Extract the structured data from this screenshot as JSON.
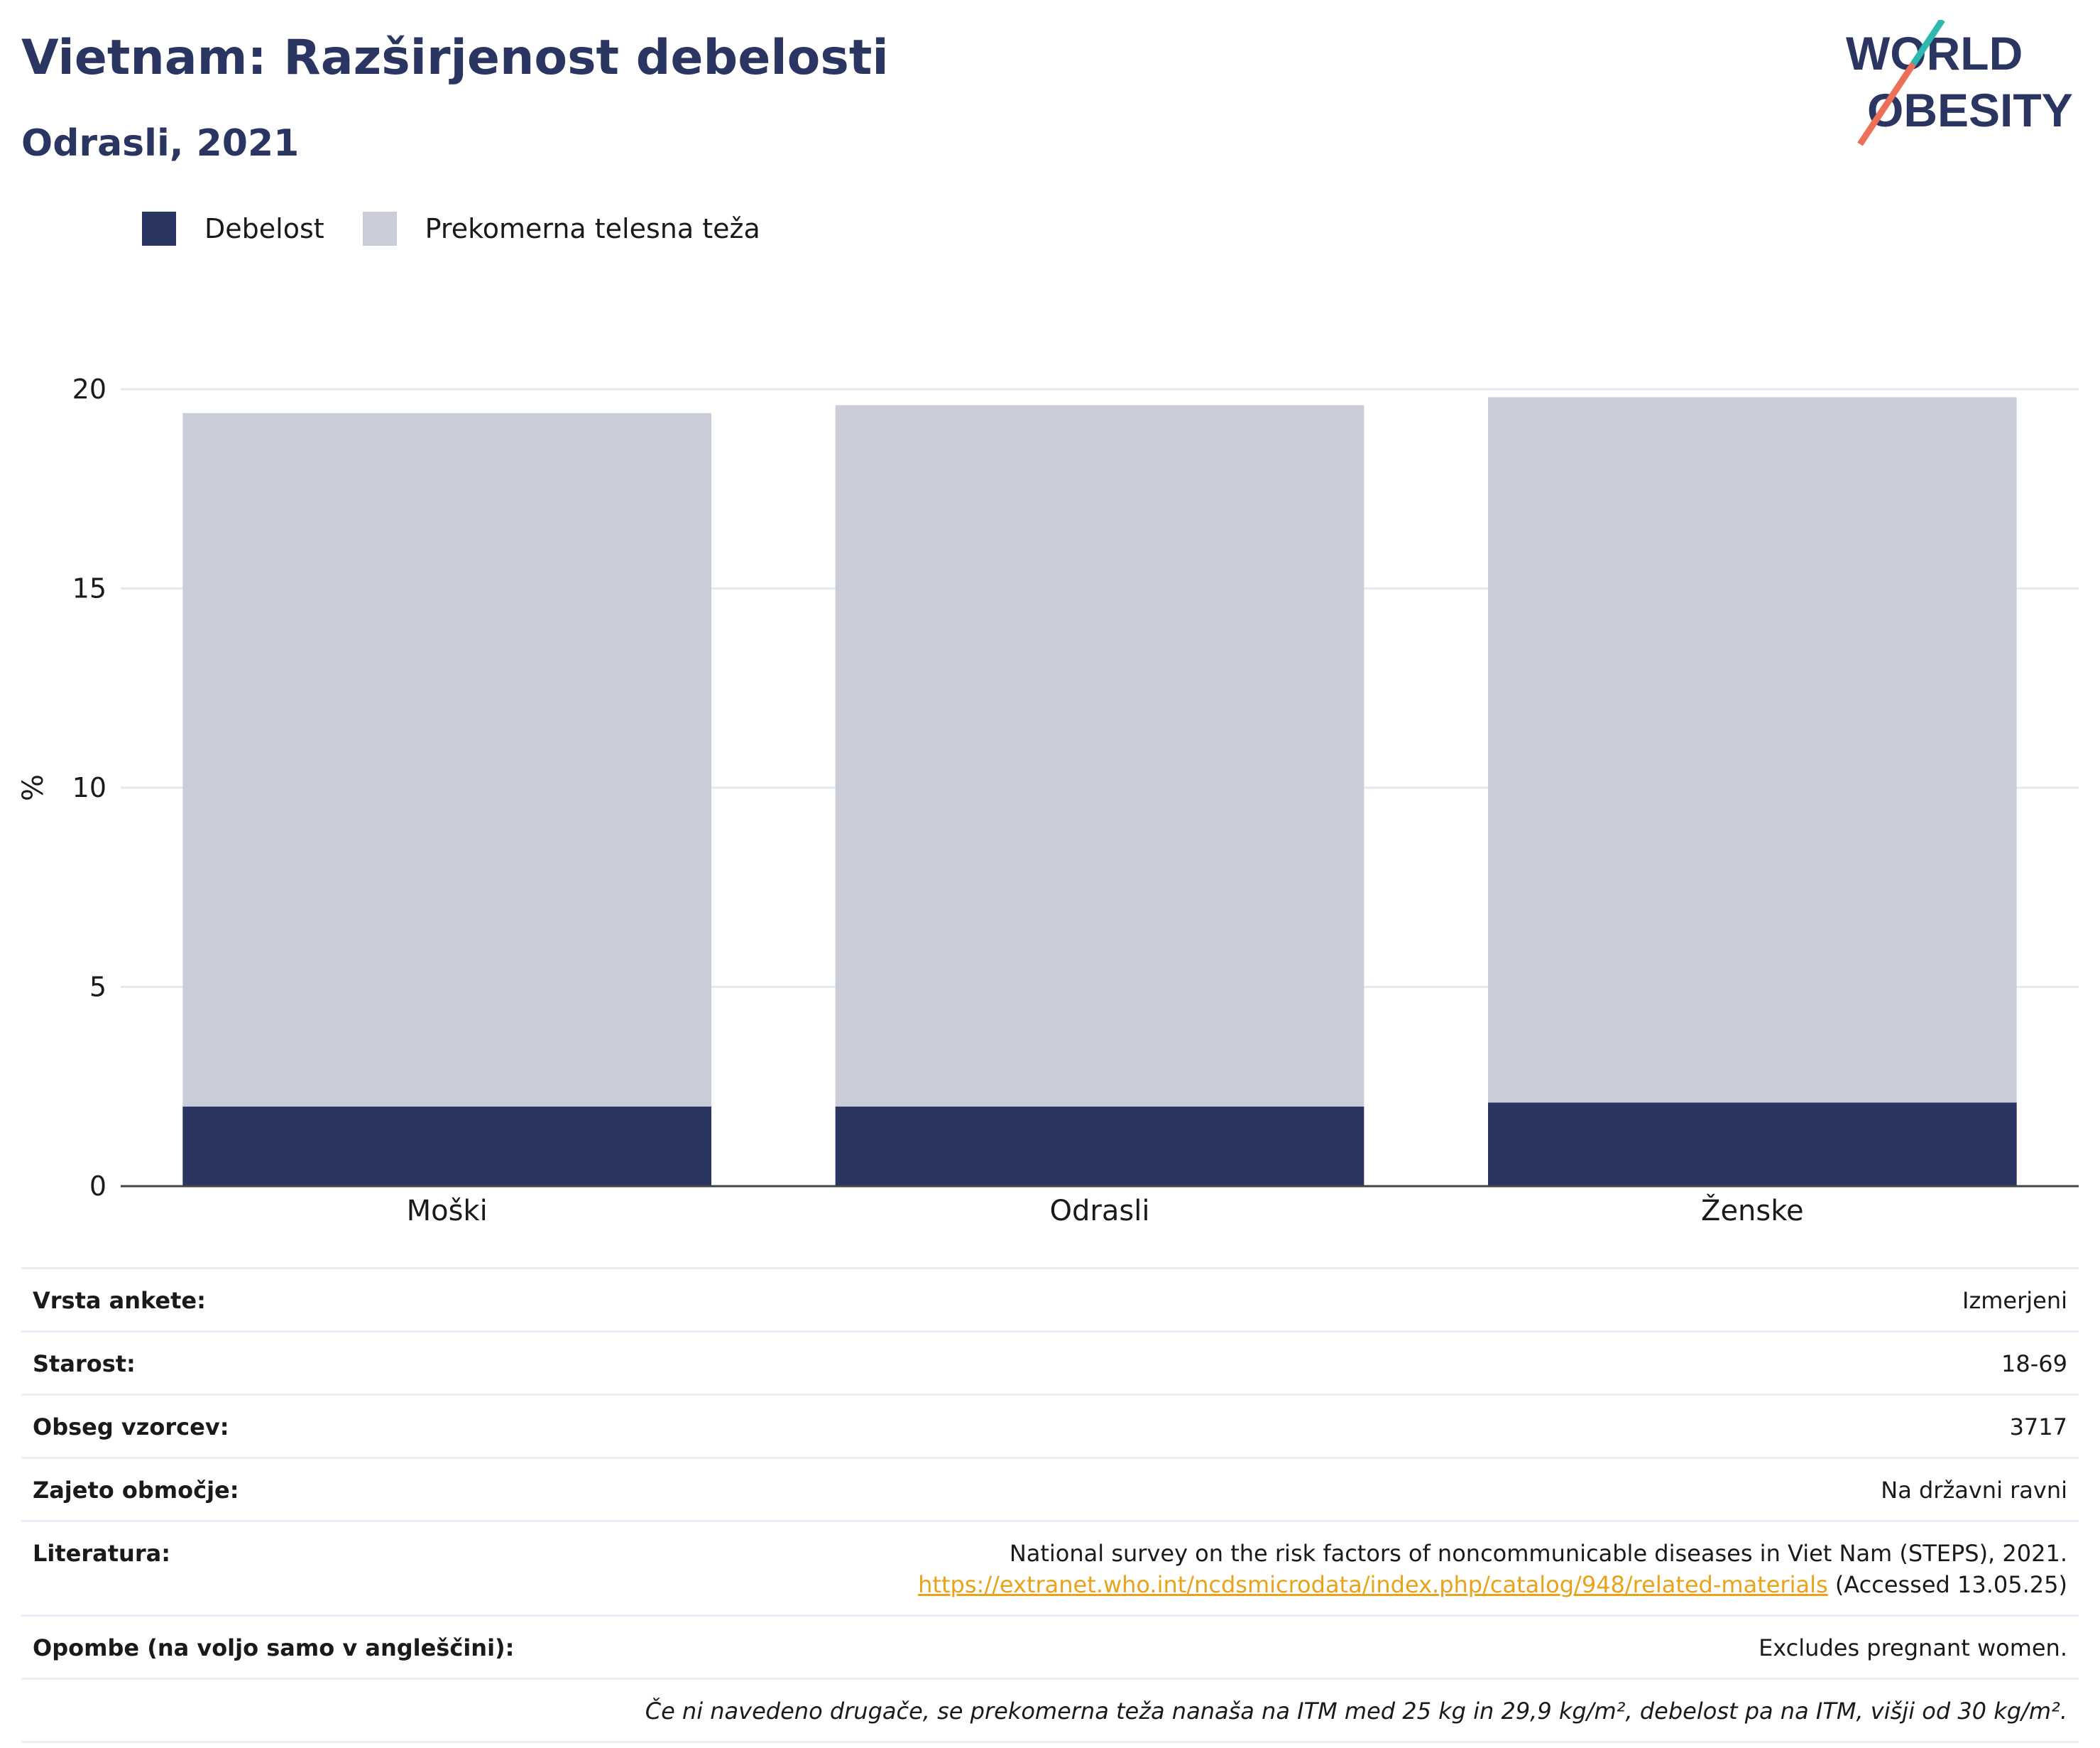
{
  "header": {
    "title": "Vietnam: Razširjenost debelosti",
    "subtitle": "Odrasli, 2021",
    "logo_text": [
      "WORLD",
      "OBESITY"
    ]
  },
  "legend": {
    "items": [
      {
        "label": "Debelost",
        "color": "#2b3561"
      },
      {
        "label": "Prekomerna telesna teža",
        "color": "#cacdd9"
      }
    ]
  },
  "chart_data": {
    "type": "bar",
    "stacked": true,
    "categories": [
      "Moški",
      "Odrasli",
      "Ženske"
    ],
    "series": [
      {
        "name": "Debelost",
        "values": [
          2.0,
          2.0,
          2.1
        ],
        "color": "#2b3561"
      },
      {
        "name": "Prekomerna telesna teža",
        "values": [
          17.4,
          17.6,
          17.7
        ],
        "color": "#cacdd9"
      }
    ],
    "ylabel": "%",
    "ylim": [
      0,
      20
    ],
    "yticks": [
      0,
      5,
      10,
      15,
      20
    ],
    "grid": true,
    "legend_position": "top-left"
  },
  "info": {
    "rows": [
      {
        "label": "Vrsta ankete:",
        "value": "Izmerjeni"
      },
      {
        "label": "Starost:",
        "value": "18-69"
      },
      {
        "label": "Obseg vzorcev:",
        "value": "3717"
      },
      {
        "label": "Zajeto območje:",
        "value": "Na državni ravni"
      }
    ],
    "literature": {
      "label": "Literatura:",
      "line1": "National survey on the risk factors of noncommunicable diseases in Viet Nam (STEPS), 2021.",
      "link": "https://extranet.who.int/ncdsmicrodata/index.php/catalog/948/related-materials",
      "accessed": " (Accessed 13.05.25)"
    },
    "notes": {
      "label": "Opombe (na voljo samo v angleščini):",
      "value": "Excludes pregnant women."
    },
    "footnote": "Če ni navedeno drugače, se prekomerna teža nanaša na ITM med 25 kg in 29,9 kg/m², debelost pa na ITM, višji od 30 kg/m²."
  }
}
